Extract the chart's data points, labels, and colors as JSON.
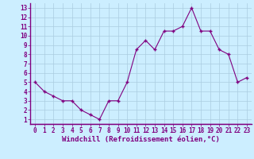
{
  "x": [
    0,
    1,
    2,
    3,
    4,
    5,
    6,
    7,
    8,
    9,
    10,
    11,
    12,
    13,
    14,
    15,
    16,
    17,
    18,
    19,
    20,
    21,
    22,
    23
  ],
  "y": [
    5.0,
    4.0,
    3.5,
    3.0,
    3.0,
    2.0,
    1.5,
    1.0,
    3.0,
    3.0,
    5.0,
    8.5,
    9.5,
    8.5,
    10.5,
    10.5,
    11.0,
    13.0,
    10.5,
    10.5,
    8.5,
    8.0,
    5.0,
    5.5
  ],
  "line_color": "#800080",
  "marker_color": "#800080",
  "bg_color": "#cceeff",
  "grid_color": "#aacce0",
  "xlabel": "Windchill (Refroidissement éolien,°C)",
  "ylabel_ticks": [
    1,
    2,
    3,
    4,
    5,
    6,
    7,
    8,
    9,
    10,
    11,
    12,
    13
  ],
  "xlim": [
    -0.5,
    23.5
  ],
  "ylim": [
    0.5,
    13.5
  ],
  "tick_fontsize": 5.5,
  "xlabel_fontsize": 6.5,
  "label_color": "#800080",
  "spine_color": "#800080",
  "bottom_bar_color": "#800080"
}
